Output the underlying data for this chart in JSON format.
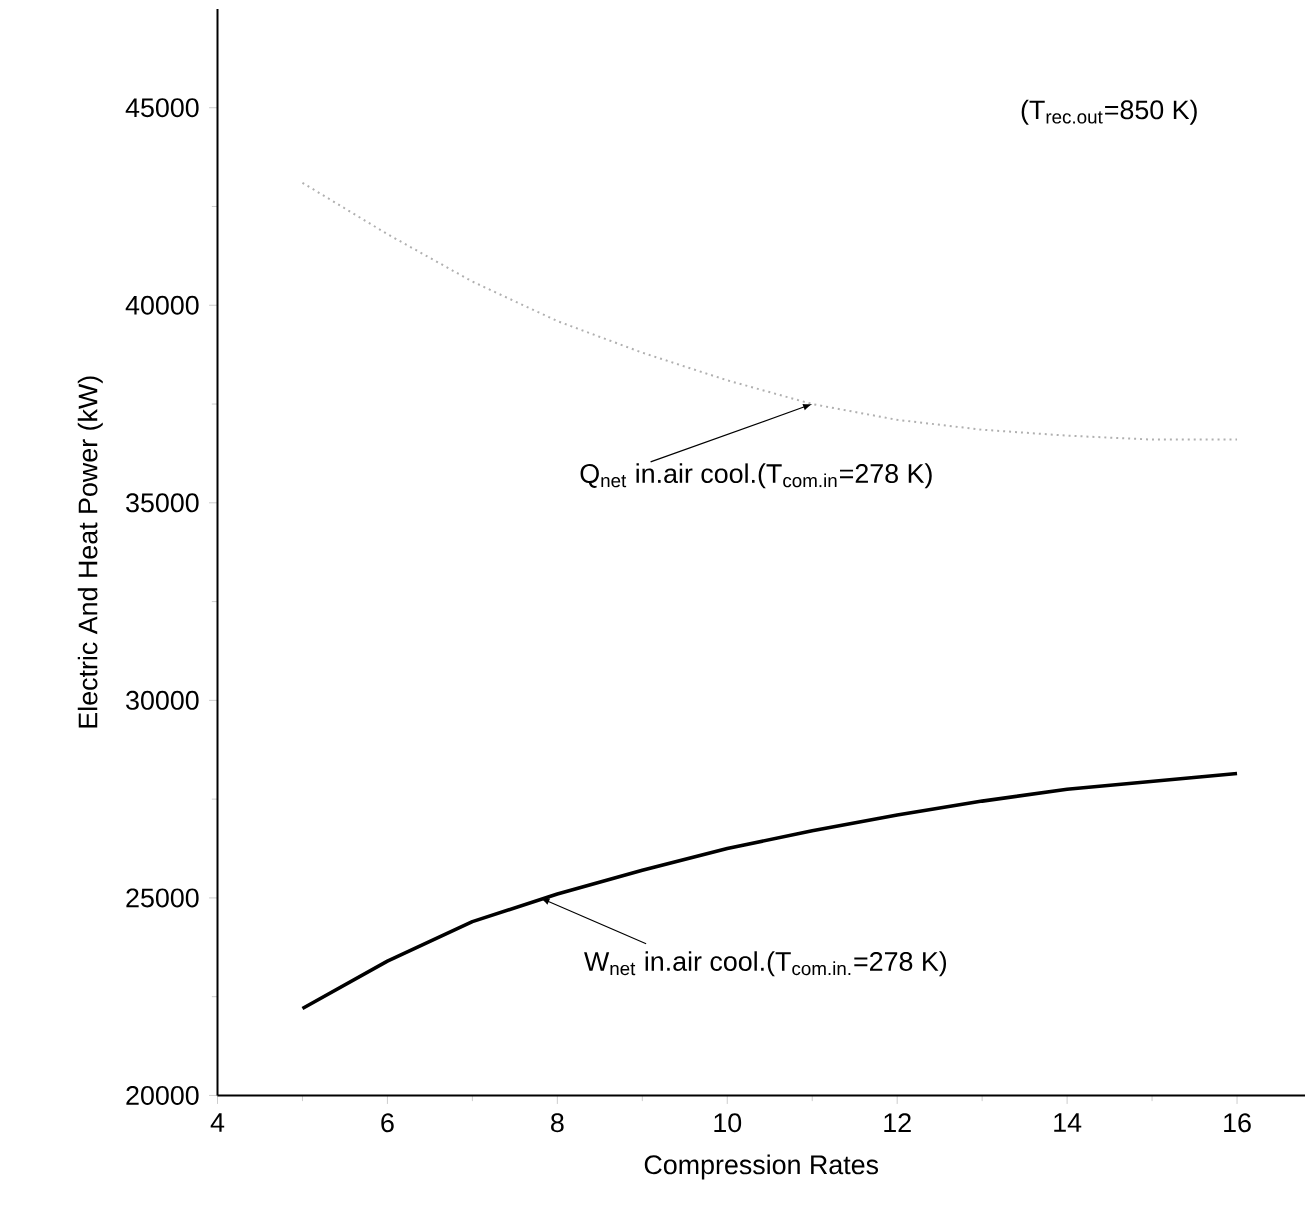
{
  "chart_data": {
    "type": "line",
    "xlabel": "Compression Rates",
    "ylabel": "Electric And Heat Power (kW)",
    "x": [
      5,
      6,
      7,
      8,
      9,
      10,
      11,
      12,
      13,
      14,
      15,
      16
    ],
    "series": [
      {
        "color": "#b0b0b0",
        "line_style": "dotted",
        "values": [
          43100,
          41800,
          40600,
          39600,
          38800,
          38100,
          37500,
          37100,
          36850,
          36700,
          36600,
          36600
        ]
      },
      {
        "color": "#000000",
        "line_style": "solid",
        "values": [
          22200,
          23400,
          24400,
          25100,
          25700,
          26250,
          26700,
          27100,
          27450,
          27750,
          27950,
          28150
        ]
      }
    ],
    "annotations": [
      "(T$_{rec.out}$=850 K)",
      {
        "text": "Q$_{net}$ in.air cool.(T$_{com.in}$=278 K)",
        "x": 11,
        "y": 37500
      },
      {
        "text": "W$_{net}$ in.air cool.(T$_{com.in.}$=278 K)",
        "x": 7.8,
        "y": 25000
      }
    ],
    "xlim": [
      4,
      16.8
    ],
    "ylim": [
      20000,
      47500
    ],
    "xticks": [
      4,
      6,
      8,
      10,
      12,
      14,
      16
    ],
    "yticks": [
      20000,
      25000,
      30000,
      35000,
      40000,
      45000
    ]
  }
}
